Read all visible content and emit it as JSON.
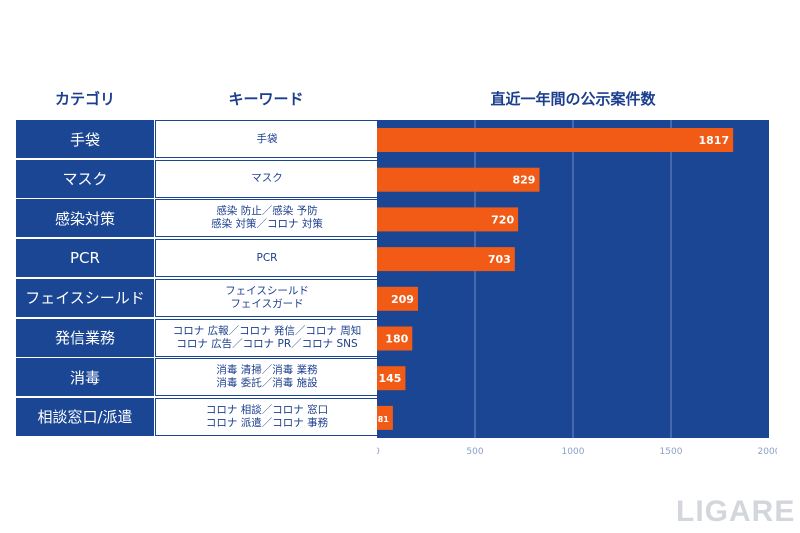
{
  "headers": {
    "category": "カテゴリ",
    "keyword": "キーワード",
    "count": "直近一年間の公示案件数"
  },
  "rows": [
    {
      "category": "手袋",
      "keywords": [
        "手袋"
      ]
    },
    {
      "category": "マスク",
      "keywords": [
        "マスク"
      ]
    },
    {
      "category": "感染対策",
      "keywords": [
        "感染 防止／感染 予防",
        "感染 対策／コロナ 対策"
      ]
    },
    {
      "category": "PCR",
      "keywords": [
        "PCR"
      ]
    },
    {
      "category": "フェイスシールド",
      "keywords": [
        "フェイスシールド",
        "フェイスガード"
      ]
    },
    {
      "category": "発信業務",
      "keywords": [
        "コロナ 広報／コロナ 発信／コロナ 周知",
        "コロナ 広告／コロナ PR／コロナ SNS"
      ]
    },
    {
      "category": "消毒",
      "keywords": [
        "消毒 清掃／消毒 業務",
        "消毒 委託／消毒 施設"
      ]
    },
    {
      "category": "相談窓口/派遣",
      "keywords": [
        "コロナ 相談／コロナ 窓口",
        "コロナ 派遣／コロナ 事務"
      ]
    }
  ],
  "chart_data": {
    "type": "bar",
    "orientation": "horizontal",
    "title": "直近一年間の公示案件数",
    "categories": [
      "手袋",
      "マスク",
      "感染対策",
      "PCR",
      "フェイスシールド",
      "発信業務",
      "消毒",
      "相談窓口/派遣"
    ],
    "values": [
      1817,
      829,
      720,
      703,
      209,
      180,
      145,
      81
    ],
    "xlim": [
      0,
      2000
    ],
    "xticks": [
      "0",
      "500",
      "1000",
      "1500",
      "2000"
    ],
    "grid": true
  },
  "colors": {
    "navy": "#1b4694",
    "bar": "#f25b16",
    "grid": "#6f8cc6",
    "tick": "#8aa0c8"
  },
  "logo": "LIGARE"
}
